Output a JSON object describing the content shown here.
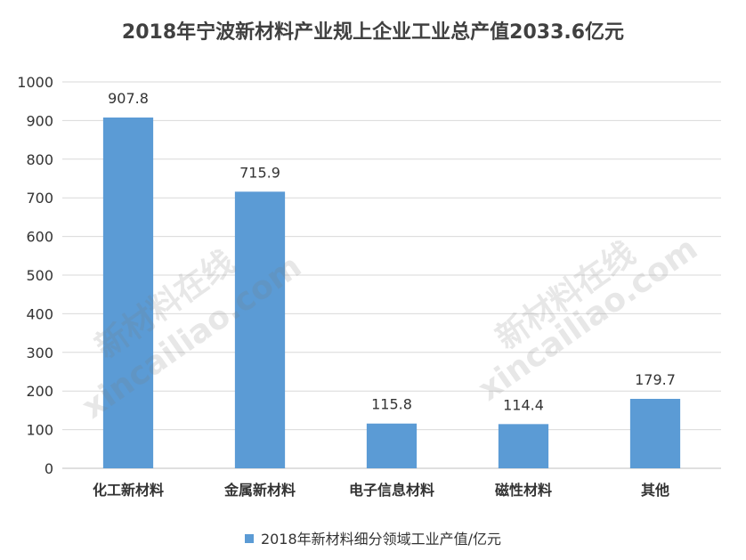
{
  "chart_data": {
    "type": "bar",
    "title": "2018年宁波新材料产业规上企业工业总产值2033.6亿元",
    "categories": [
      "化工新材料",
      "金属新材料",
      "电子信息材料",
      "磁性材料",
      "其他"
    ],
    "series": [
      {
        "name": "2018年新材料细分领域工业产值/亿元",
        "values": [
          907.8,
          715.9,
          115.8,
          114.4,
          179.7
        ]
      }
    ],
    "ylim": [
      0,
      1000
    ],
    "yticks": [
      "0",
      "100",
      "200",
      "300",
      "400",
      "500",
      "600",
      "700",
      "800",
      "900",
      "1000"
    ],
    "data_labels": [
      "907.8",
      "715.9",
      "115.8",
      "114.4",
      "179.7"
    ],
    "grid": true,
    "legend_position": "bottom",
    "bar_color": "#5b9bd5"
  },
  "watermark": {
    "cn": "新材料在线",
    "en": "xincailiao.com"
  }
}
